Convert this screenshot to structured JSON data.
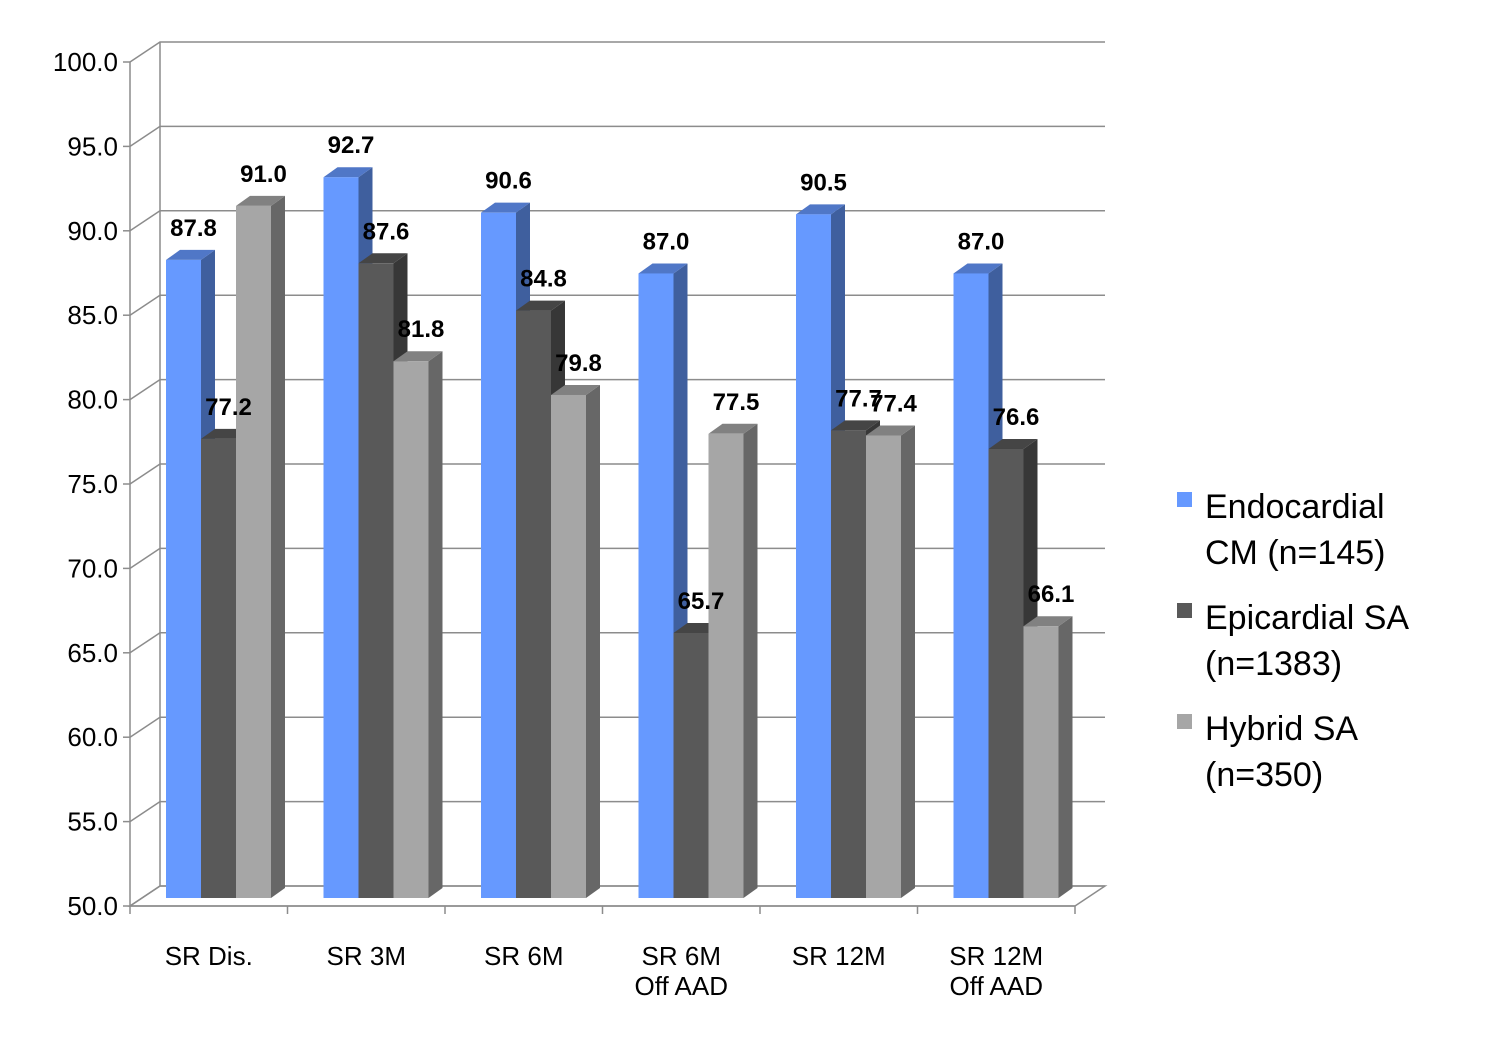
{
  "chart_data": {
    "type": "bar",
    "style": "3d-clustered-column",
    "categories": [
      [
        "SR Dis."
      ],
      [
        "SR 3M"
      ],
      [
        "SR 6M"
      ],
      [
        "SR 6M",
        "Off AAD"
      ],
      [
        "SR 12M"
      ],
      [
        "SR 12M",
        "Off AAD"
      ]
    ],
    "series": [
      {
        "name": [
          "Endocardial",
          "CM (n=145)"
        ],
        "color": "#6699FF",
        "values": [
          87.8,
          92.7,
          90.6,
          87.0,
          90.5,
          87.0
        ],
        "labels": [
          "87.8",
          "92.7",
          "90.6",
          "87.0",
          "90.5",
          "87.0"
        ]
      },
      {
        "name": [
          "Epicardial SA",
          "(n=1383)"
        ],
        "color": "#595959",
        "values": [
          77.2,
          87.6,
          84.8,
          65.7,
          77.7,
          76.6
        ],
        "labels": [
          "77.2",
          "87.6",
          "84.8",
          "65.7",
          "77.7",
          "76.6"
        ]
      },
      {
        "name": [
          "Hybrid SA",
          "(n=350)"
        ],
        "color": "#A6A6A6",
        "values": [
          91.0,
          81.8,
          79.8,
          77.5,
          77.4,
          66.1
        ],
        "labels": [
          "91.0",
          "81.8",
          "79.8",
          "77.5",
          "77.4",
          "66.1"
        ]
      }
    ],
    "ylim": [
      50,
      100
    ],
    "yticks": [
      "50.0",
      "55.0",
      "60.0",
      "65.0",
      "70.0",
      "75.0",
      "80.0",
      "85.0",
      "90.0",
      "95.0",
      "100.0"
    ],
    "grid": true,
    "legend": "right",
    "title": "",
    "xlabel": "",
    "ylabel": ""
  }
}
